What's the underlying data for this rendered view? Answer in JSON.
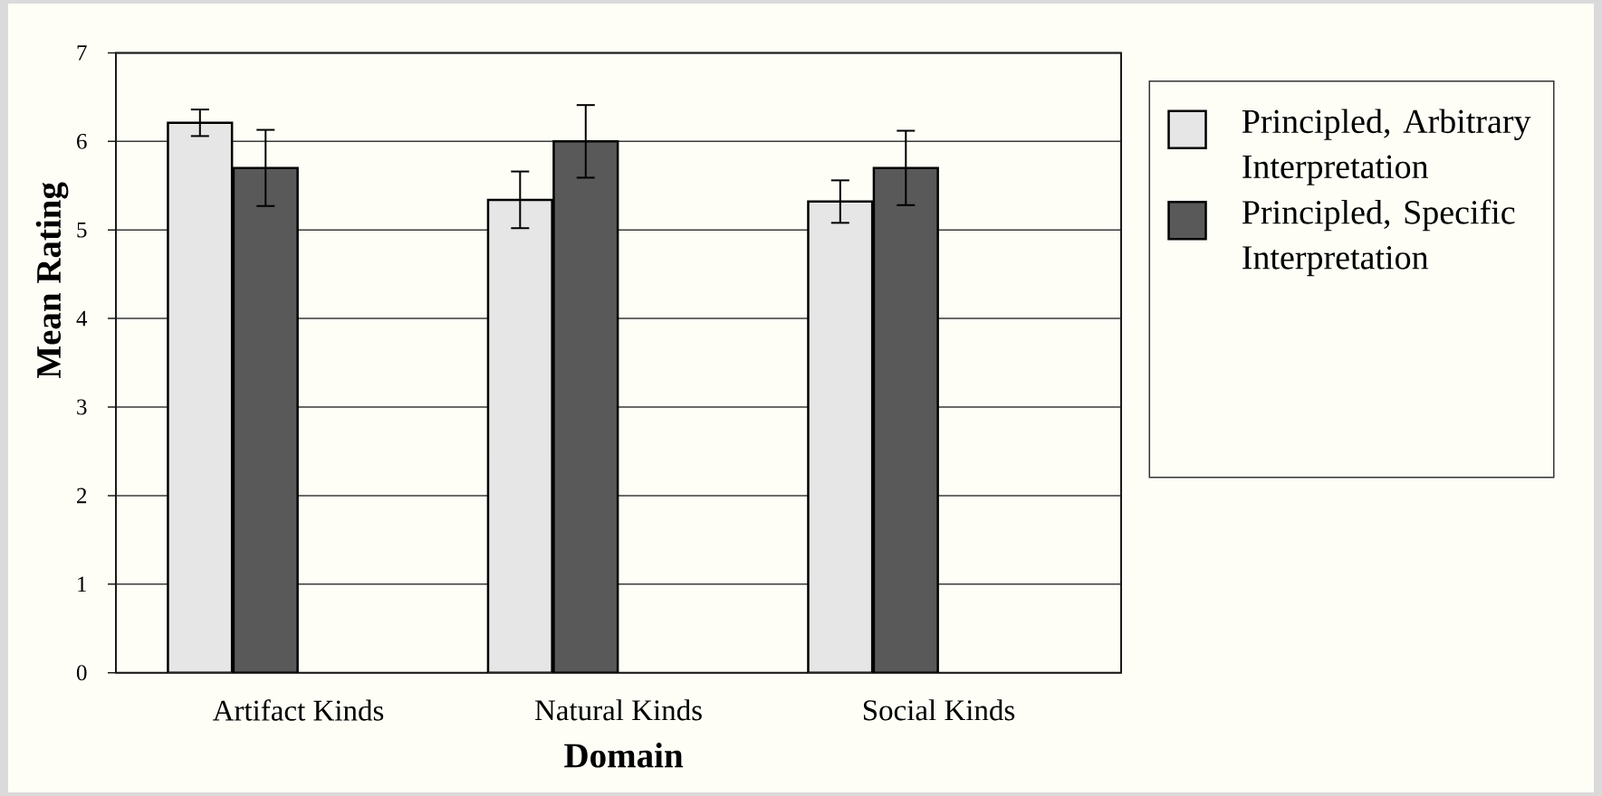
{
  "chart_data": {
    "type": "bar",
    "xlabel": "Domain",
    "ylabel": "Mean Rating",
    "categories": [
      "Artifact Kinds",
      "Natural Kinds",
      "Social Kinds"
    ],
    "series": [
      {
        "name": "Principled, Arbitrary Interpretation",
        "color": "#e6e6e6",
        "values": [
          6.21,
          5.34,
          5.32
        ],
        "errors": [
          0.15,
          0.32,
          0.24
        ]
      },
      {
        "name": "Principled, Specific Interpretation",
        "color": "#595959",
        "values": [
          5.7,
          6.0,
          5.7
        ],
        "errors": [
          0.43,
          0.41,
          0.42
        ]
      }
    ],
    "ylim": [
      0,
      7
    ],
    "yticks": [
      0,
      1,
      2,
      3,
      4,
      5,
      6,
      7
    ],
    "grid": "y",
    "legend": "right"
  }
}
